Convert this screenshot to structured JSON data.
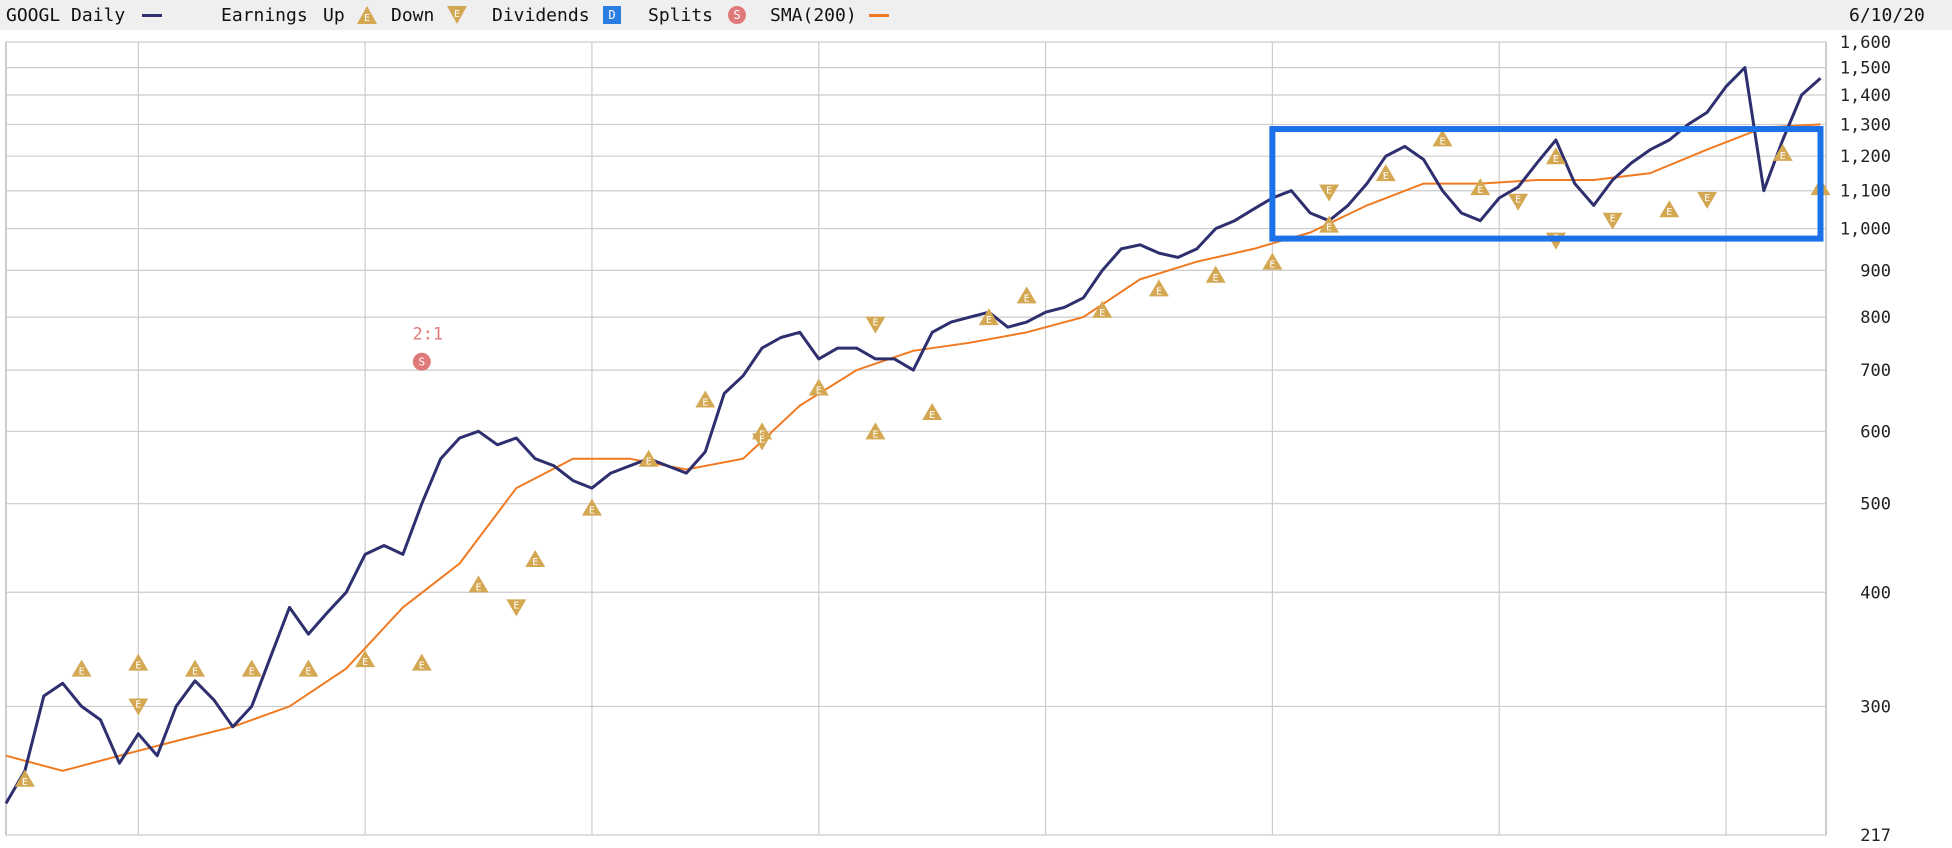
{
  "legend": {
    "ticker": "GOOGL Daily",
    "earnings_label": "Earnings",
    "up_label": "Up",
    "down_label": "Down",
    "dividends_label": "Dividends",
    "dividend_marker": "D",
    "splits_label": "Splits",
    "split_marker": "S",
    "sma_label": "SMA(200)",
    "date": "6/10/20"
  },
  "colors": {
    "price": "#2e2f6e",
    "sma": "#f07a22",
    "earnings": "#d4a853",
    "dividend": "#2a7de1",
    "split": "#e07a7a",
    "highlight_box": "#1b72e8",
    "grid": "#cccccc"
  },
  "icons": {
    "earnings_up": "triangle-up-e",
    "earnings_down": "triangle-down-e",
    "dividend": "blue-square-d",
    "split": "red-circle-s"
  },
  "chart_data": {
    "type": "line",
    "title": "",
    "y_scale": "log",
    "ylim": [
      217,
      1600
    ],
    "y_ticks": [
      1600,
      1500,
      1400,
      1300,
      1200,
      1100,
      1000,
      900,
      800,
      700,
      600,
      500,
      400,
      300,
      217
    ],
    "y_tick_labels": [
      "1,600",
      "1,500",
      "1,400",
      "1,300",
      "1,200",
      "1,100",
      "1,000",
      "900",
      "800",
      "700",
      "600",
      "500",
      "400",
      "300",
      "217"
    ],
    "x_range": [
      "2012-06",
      "2020-06-10"
    ],
    "x_gridlines": [
      "2013-01",
      "2014-01",
      "2015-01",
      "2016-01",
      "2017-01",
      "2018-01",
      "2019-01",
      "2020-01"
    ],
    "grid": true,
    "series": [
      {
        "key": "price",
        "x": [
          "2012-06",
          "2012-07",
          "2012-08",
          "2012-09",
          "2012-10",
          "2012-11",
          "2012-12",
          "2013-01",
          "2013-02",
          "2013-03",
          "2013-04",
          "2013-05",
          "2013-06",
          "2013-07",
          "2013-08",
          "2013-09",
          "2013-10",
          "2013-11",
          "2013-12",
          "2014-01",
          "2014-02",
          "2014-03",
          "2014-04",
          "2014-05",
          "2014-06",
          "2014-07",
          "2014-08",
          "2014-09",
          "2014-10",
          "2014-11",
          "2014-12",
          "2015-01",
          "2015-02",
          "2015-03",
          "2015-04",
          "2015-05",
          "2015-06",
          "2015-07",
          "2015-08",
          "2015-09",
          "2015-10",
          "2015-11",
          "2015-12",
          "2016-01",
          "2016-02",
          "2016-03",
          "2016-04",
          "2016-05",
          "2016-06",
          "2016-07",
          "2016-08",
          "2016-09",
          "2016-10",
          "2016-11",
          "2016-12",
          "2017-01",
          "2017-02",
          "2017-03",
          "2017-04",
          "2017-05",
          "2017-06",
          "2017-07",
          "2017-08",
          "2017-09",
          "2017-10",
          "2017-11",
          "2017-12",
          "2018-01",
          "2018-02",
          "2018-03",
          "2018-04",
          "2018-05",
          "2018-06",
          "2018-07",
          "2018-08",
          "2018-09",
          "2018-10",
          "2018-11",
          "2018-12",
          "2019-01",
          "2019-02",
          "2019-03",
          "2019-04",
          "2019-05",
          "2019-06",
          "2019-07",
          "2019-08",
          "2019-09",
          "2019-10",
          "2019-11",
          "2019-12",
          "2020-01",
          "2020-02",
          "2020-03",
          "2020-04",
          "2020-05",
          "2020-06"
        ],
        "values": [
          235,
          255,
          308,
          318,
          300,
          290,
          260,
          280,
          265,
          300,
          320,
          305,
          285,
          300,
          340,
          385,
          360,
          380,
          400,
          440,
          450,
          440,
          500,
          560,
          590,
          600,
          580,
          590,
          560,
          550,
          530,
          520,
          540,
          550,
          560,
          550,
          540,
          570,
          660,
          690,
          740,
          760,
          770,
          720,
          740,
          740,
          720,
          720,
          700,
          770,
          790,
          800,
          810,
          780,
          790,
          810,
          820,
          840,
          900,
          950,
          960,
          940,
          930,
          950,
          1000,
          1020,
          1050,
          1080,
          1100,
          1040,
          1020,
          1060,
          1120,
          1200,
          1230,
          1190,
          1100,
          1040,
          1020,
          1080,
          1110,
          1180,
          1250,
          1120,
          1060,
          1130,
          1180,
          1220,
          1250,
          1300,
          1340,
          1430,
          1500,
          1100,
          1250,
          1400,
          1460
        ]
      },
      {
        "key": "sma",
        "x": [
          "2012-06",
          "2012-09",
          "2012-12",
          "2013-03",
          "2013-06",
          "2013-09",
          "2013-12",
          "2014-03",
          "2014-06",
          "2014-09",
          "2014-12",
          "2015-03",
          "2015-06",
          "2015-09",
          "2015-12",
          "2016-03",
          "2016-06",
          "2016-09",
          "2016-12",
          "2017-03",
          "2017-06",
          "2017-09",
          "2017-12",
          "2018-03",
          "2018-06",
          "2018-09",
          "2018-12",
          "2019-03",
          "2019-06",
          "2019-09",
          "2019-12",
          "2020-03",
          "2020-06"
        ],
        "values": [
          265,
          255,
          265,
          275,
          285,
          300,
          330,
          385,
          430,
          520,
          560,
          560,
          545,
          560,
          640,
          700,
          735,
          750,
          770,
          800,
          880,
          920,
          950,
          990,
          1060,
          1120,
          1120,
          1130,
          1130,
          1150,
          1220,
          1290,
          1300
        ]
      }
    ],
    "earnings_up": [
      {
        "x": "2012-07",
        "y": 250
      },
      {
        "x": "2012-10",
        "y": 330
      },
      {
        "x": "2013-01",
        "y": 335
      },
      {
        "x": "2013-04",
        "y": 330
      },
      {
        "x": "2013-07",
        "y": 330
      },
      {
        "x": "2013-10",
        "y": 330
      },
      {
        "x": "2014-01",
        "y": 338
      },
      {
        "x": "2014-04",
        "y": 335
      },
      {
        "x": "2014-07",
        "y": 408
      },
      {
        "x": "2014-10",
        "y": 435
      },
      {
        "x": "2015-01",
        "y": 495
      },
      {
        "x": "2015-04",
        "y": 560
      },
      {
        "x": "2015-07",
        "y": 650
      },
      {
        "x": "2015-10",
        "y": 600
      },
      {
        "x": "2016-01",
        "y": 670
      },
      {
        "x": "2016-04",
        "y": 600
      },
      {
        "x": "2016-07",
        "y": 630
      },
      {
        "x": "2016-10",
        "y": 800
      },
      {
        "x": "2016-12",
        "y": 845
      },
      {
        "x": "2017-04",
        "y": 815
      },
      {
        "x": "2017-07",
        "y": 860
      },
      {
        "x": "2017-10",
        "y": 890
      },
      {
        "x": "2018-01",
        "y": 920
      },
      {
        "x": "2018-04",
        "y": 1010
      },
      {
        "x": "2018-07",
        "y": 1150
      },
      {
        "x": "2018-10",
        "y": 1255
      },
      {
        "x": "2018-12",
        "y": 1110
      },
      {
        "x": "2019-04",
        "y": 1200
      },
      {
        "x": "2019-10",
        "y": 1050
      },
      {
        "x": "2020-04",
        "y": 1210
      },
      {
        "x": "2020-06",
        "y": 1110
      }
    ],
    "earnings_down": [
      {
        "x": "2013-01",
        "y": 300
      },
      {
        "x": "2014-09",
        "y": 385
      },
      {
        "x": "2015-10",
        "y": 585
      },
      {
        "x": "2016-04",
        "y": 785
      },
      {
        "x": "2018-04",
        "y": 1095
      },
      {
        "x": "2019-02",
        "y": 1070
      },
      {
        "x": "2019-04",
        "y": 970
      },
      {
        "x": "2019-07",
        "y": 1020
      },
      {
        "x": "2019-12",
        "y": 1075
      }
    ],
    "splits": [
      {
        "x": "2014-04",
        "y": 715,
        "label": "2:1"
      }
    ],
    "annotations": [
      {
        "type": "rectangle",
        "x_start": "2018-01",
        "x_end": "2020-06",
        "y_low": 975,
        "y_high": 1285
      }
    ]
  }
}
